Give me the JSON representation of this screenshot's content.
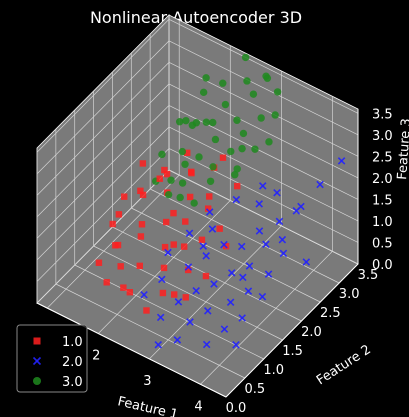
{
  "chart_data": {
    "type": "scatter3d",
    "title": "Nonlinear Autoencoder 3D",
    "xlabel": "Feature 1",
    "ylabel": "Feature 2",
    "zlabel": "Feature 3",
    "xlim": [
      0.8,
      4.5
    ],
    "ylim": [
      0,
      3.5
    ],
    "zlim": [
      0,
      3.6
    ],
    "x_ticks": [
      "2",
      "3",
      "4"
    ],
    "y_ticks": [
      "0.0",
      "0.5",
      "1.0",
      "1.5",
      "2.0",
      "2.5",
      "3.0",
      "3.5"
    ],
    "z_ticks": [
      "0.0",
      "0.5",
      "1.0",
      "1.5",
      "2.0",
      "2.5",
      "3.0",
      "3.5"
    ],
    "grid": true,
    "legend_position": "bottom-left",
    "pane_color": "#7a7a7a",
    "series": [
      {
        "name": "1.0",
        "marker": "square",
        "color": "#ff2020",
        "points": [
          [
            1.0,
            1.9,
            0.5
          ],
          [
            1.1,
            1.6,
            0.6
          ],
          [
            1.2,
            2.2,
            0.9
          ],
          [
            1.3,
            1.4,
            0.4
          ],
          [
            1.4,
            2.0,
            1.1
          ],
          [
            1.5,
            1.2,
            0.7
          ],
          [
            1.5,
            2.5,
            1.2
          ],
          [
            1.6,
            1.7,
            0.8
          ],
          [
            1.7,
            1.0,
            0.5
          ],
          [
            1.8,
            2.1,
            1.3
          ],
          [
            1.8,
            1.4,
            0.9
          ],
          [
            1.9,
            2.6,
            1.4
          ],
          [
            2.0,
            1.8,
            1.0
          ],
          [
            2.0,
            1.1,
            0.6
          ],
          [
            2.1,
            2.3,
            1.2
          ],
          [
            2.2,
            1.5,
            0.8
          ],
          [
            2.2,
            2.8,
            1.5
          ],
          [
            2.3,
            1.9,
            1.1
          ],
          [
            2.4,
            1.2,
            0.7
          ],
          [
            2.4,
            2.4,
            1.3
          ],
          [
            2.5,
            1.6,
            0.9
          ],
          [
            2.6,
            2.1,
            1.4
          ],
          [
            2.6,
            0.9,
            0.5
          ],
          [
            2.7,
            1.8,
            1.0
          ],
          [
            2.8,
            2.6,
            1.6
          ],
          [
            2.8,
            1.3,
            0.8
          ],
          [
            2.9,
            2.0,
            1.2
          ],
          [
            3.0,
            1.5,
            0.6
          ],
          [
            1.3,
            2.7,
            1.0
          ],
          [
            1.6,
            2.9,
            1.4
          ],
          [
            1.9,
            0.8,
            0.3
          ],
          [
            2.1,
            0.7,
            0.4
          ],
          [
            2.3,
            2.9,
            1.7
          ],
          [
            2.5,
            0.6,
            0.3
          ],
          [
            1.2,
            1.1,
            0.2
          ],
          [
            1.7,
            2.4,
            0.5
          ],
          [
            2.0,
            2.0,
            0.3
          ],
          [
            2.6,
            1.2,
            0.2
          ],
          [
            3.1,
            1.9,
            1.0
          ],
          [
            1.4,
            1.5,
            1.5
          ],
          [
            1.8,
            1.9,
            1.8
          ],
          [
            2.2,
            2.2,
            1.9
          ],
          [
            1.1,
            2.4,
            1.3
          ],
          [
            2.9,
            1.1,
            0.4
          ],
          [
            1.5,
            0.9,
            0.1
          ]
        ]
      },
      {
        "name": "2.0",
        "marker": "x",
        "color": "#2222ff",
        "points": [
          [
            2.6,
            0.4,
            0.9
          ],
          [
            2.8,
            0.6,
            1.2
          ],
          [
            3.0,
            0.3,
            0.7
          ],
          [
            3.1,
            0.9,
            1.4
          ],
          [
            3.2,
            0.5,
            1.0
          ],
          [
            3.3,
            1.1,
            1.6
          ],
          [
            3.4,
            0.7,
            1.2
          ],
          [
            3.5,
            1.3,
            1.8
          ],
          [
            3.5,
            0.4,
            0.8
          ],
          [
            3.6,
            0.9,
            1.3
          ],
          [
            3.7,
            1.5,
            1.7
          ],
          [
            3.7,
            0.6,
            1.0
          ],
          [
            3.8,
            1.1,
            1.5
          ],
          [
            3.9,
            0.3,
            0.6
          ],
          [
            3.9,
            1.7,
            2.0
          ],
          [
            4.0,
            0.8,
            1.2
          ],
          [
            4.0,
            1.3,
            1.6
          ],
          [
            4.1,
            0.5,
            0.9
          ],
          [
            4.2,
            1.0,
            1.4
          ],
          [
            4.2,
            1.9,
            1.8
          ],
          [
            4.3,
            0.7,
            1.1
          ],
          [
            4.3,
            1.4,
            1.5
          ],
          [
            4.4,
            0.4,
            0.8
          ],
          [
            4.4,
            1.1,
            1.3
          ],
          [
            3.0,
            1.6,
            2.0
          ],
          [
            3.3,
            1.9,
            2.2
          ],
          [
            3.6,
            2.1,
            2.1
          ],
          [
            2.9,
            1.2,
            1.8
          ],
          [
            3.4,
            0.2,
            0.5
          ],
          [
            3.8,
            2.3,
            2.3
          ],
          [
            4.1,
            1.6,
            1.9
          ],
          [
            3.2,
            1.4,
            1.9
          ],
          [
            2.7,
            0.9,
            1.5
          ],
          [
            4.4,
            2.0,
            2.5
          ],
          [
            3.5,
            1.8,
            0.6
          ],
          [
            4.0,
            2.2,
            1.1
          ],
          [
            3.7,
            2.5,
            1.4
          ],
          [
            3.1,
            0.1,
            0.3
          ],
          [
            4.3,
            2.4,
            0.9
          ],
          [
            3.9,
            2.8,
            1.6
          ],
          [
            4.4,
            3.2,
            2.6
          ],
          [
            3.3,
            2.6,
            1.9
          ],
          [
            4.2,
            2.9,
            2.2
          ],
          [
            2.8,
            1.7,
            1.0
          ]
        ]
      },
      {
        "name": "3.0",
        "marker": "circle",
        "color": "#1f8a1f",
        "points": [
          [
            1.5,
            3.0,
            2.0
          ],
          [
            1.6,
            2.7,
            2.3
          ],
          [
            1.7,
            3.2,
            2.6
          ],
          [
            1.8,
            2.5,
            1.9
          ],
          [
            1.9,
            3.0,
            2.2
          ],
          [
            2.0,
            2.6,
            2.6
          ],
          [
            2.0,
            3.3,
            2.9
          ],
          [
            2.1,
            2.9,
            2.4
          ],
          [
            2.2,
            2.4,
            2.1
          ],
          [
            2.2,
            3.1,
            2.7
          ],
          [
            2.3,
            2.7,
            2.3
          ],
          [
            2.4,
            3.4,
            3.1
          ],
          [
            2.4,
            2.5,
            1.9
          ],
          [
            2.5,
            3.0,
            2.6
          ],
          [
            2.6,
            2.7,
            2.2
          ],
          [
            2.6,
            3.3,
            3.0
          ],
          [
            2.7,
            2.9,
            2.5
          ],
          [
            2.8,
            3.4,
            3.4
          ],
          [
            2.8,
            2.6,
            2.0
          ],
          [
            2.9,
            3.1,
            2.8
          ],
          [
            3.0,
            2.8,
            2.4
          ],
          [
            3.0,
            3.4,
            3.2
          ],
          [
            1.4,
            2.5,
            1.6
          ],
          [
            1.8,
            2.2,
            1.5
          ],
          [
            2.1,
            2.1,
            1.7
          ],
          [
            2.5,
            2.3,
            1.8
          ],
          [
            2.3,
            3.5,
            3.5
          ],
          [
            2.7,
            3.5,
            3.3
          ],
          [
            1.6,
            3.4,
            2.7
          ],
          [
            1.9,
            2.0,
            1.4
          ],
          [
            2.2,
            1.9,
            1.6
          ],
          [
            2.9,
            2.4,
            2.1
          ],
          [
            3.1,
            3.2,
            2.9
          ],
          [
            1.7,
            2.9,
            2.1
          ],
          [
            2.0,
            2.3,
            1.9
          ],
          [
            2.4,
            2.0,
            1.5
          ],
          [
            2.6,
            3.0,
            2.0
          ],
          [
            1.5,
            2.2,
            1.3
          ],
          [
            3.2,
            2.9,
            2.6
          ]
        ]
      }
    ]
  }
}
